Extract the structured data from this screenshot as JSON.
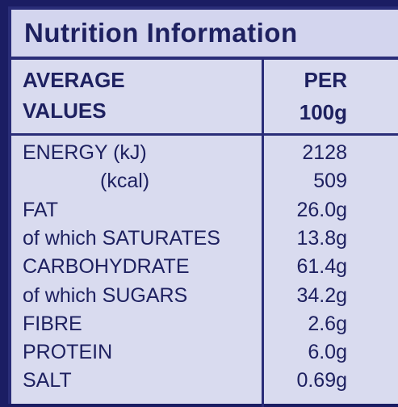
{
  "header": {
    "title": "Nutrition Information"
  },
  "table": {
    "column_headers": [
      [
        "AVERAGE",
        "VALUES"
      ],
      [
        "PER",
        "100g"
      ]
    ],
    "rows": [
      [
        "ENERGY (kJ)",
        "2128"
      ],
      [
        "(kcal)",
        "509"
      ],
      [
        "FAT",
        "26.0g"
      ],
      [
        "of which SATURATES",
        "13.8g"
      ],
      [
        "CARBOHYDRATE",
        "61.4g"
      ],
      [
        "of which SUGARS",
        "34.2g"
      ],
      [
        "FIBRE",
        "2.6g"
      ],
      [
        "PROTEIN",
        "6.0g"
      ],
      [
        "SALT",
        "0.69g"
      ]
    ]
  }
}
